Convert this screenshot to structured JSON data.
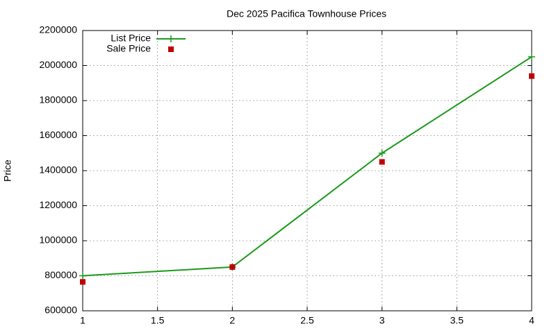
{
  "chart_data": {
    "type": "line",
    "title": "Dec 2025 Pacifica Townhouse Prices",
    "y_label": "Price",
    "x": [
      1,
      2,
      3,
      4
    ],
    "series": [
      {
        "name": "List Price",
        "color": "#1a9a1a",
        "marker": "plus",
        "line": true,
        "values": [
          800000,
          850000,
          1500000,
          2050000
        ]
      },
      {
        "name": "Sale Price",
        "color": "#c00000",
        "marker": "square",
        "line": false,
        "values": [
          765000,
          850000,
          1450000,
          1940000
        ]
      }
    ],
    "xlim": [
      1,
      4
    ],
    "xticks": [
      1,
      1.5,
      2,
      2.5,
      3,
      3.5,
      4
    ],
    "ylim": [
      600000,
      2200000
    ],
    "yticks": [
      600000,
      800000,
      1000000,
      1200000,
      1400000,
      1600000,
      1800000,
      2000000,
      2200000
    ],
    "grid": true,
    "legend": "top-left"
  }
}
